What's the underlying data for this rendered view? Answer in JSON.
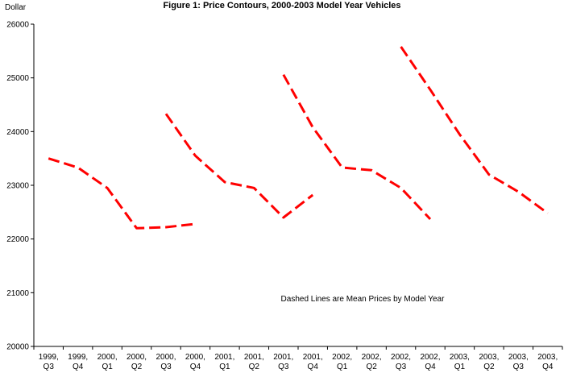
{
  "chart_data": {
    "type": "line",
    "title": "Figure 1: Price Contours, 2000-2003 Model Year Vehicles",
    "ylabel": "Dollar",
    "xlabel": "",
    "ylim": [
      20000,
      26000
    ],
    "yticks": [
      20000,
      21000,
      22000,
      23000,
      24000,
      25000,
      26000
    ],
    "categories": [
      [
        "1999,",
        "Q3"
      ],
      [
        "1999,",
        "Q4"
      ],
      [
        "2000,",
        "Q1"
      ],
      [
        "2000,",
        "Q2"
      ],
      [
        "2000,",
        "Q3"
      ],
      [
        "2000,",
        "Q4"
      ],
      [
        "2001,",
        "Q1"
      ],
      [
        "2001,",
        "Q2"
      ],
      [
        "2001,",
        "Q3"
      ],
      [
        "2001,",
        "Q4"
      ],
      [
        "2002,",
        "Q1"
      ],
      [
        "2002,",
        "Q2"
      ],
      [
        "2002,",
        "Q3"
      ],
      [
        "2002,",
        "Q4"
      ],
      [
        "2003,",
        "Q1"
      ],
      [
        "2003,",
        "Q2"
      ],
      [
        "2003,",
        "Q3"
      ],
      [
        "2003,",
        "Q4"
      ]
    ],
    "series": [
      {
        "values": [
          23500,
          23330,
          22950,
          22200,
          22220,
          22280,
          null,
          null,
          null,
          null,
          null,
          null,
          null,
          null,
          null,
          null,
          null,
          null
        ]
      },
      {
        "values": [
          null,
          null,
          null,
          null,
          24330,
          23550,
          23060,
          22950,
          22400,
          22820,
          null,
          null,
          null,
          null,
          null,
          null,
          null,
          null
        ]
      },
      {
        "values": [
          null,
          null,
          null,
          null,
          null,
          null,
          null,
          null,
          25060,
          24080,
          23330,
          23280,
          22950,
          22370,
          null,
          null,
          null,
          null
        ]
      },
      {
        "values": [
          null,
          null,
          null,
          null,
          null,
          null,
          null,
          null,
          null,
          null,
          null,
          null,
          25580,
          24780,
          23950,
          23200,
          22880,
          22480
        ]
      }
    ],
    "series_color": "#ff0000",
    "annotation": "Dashed Lines are Mean Prices by Model Year",
    "grid": false,
    "legend": "none"
  }
}
